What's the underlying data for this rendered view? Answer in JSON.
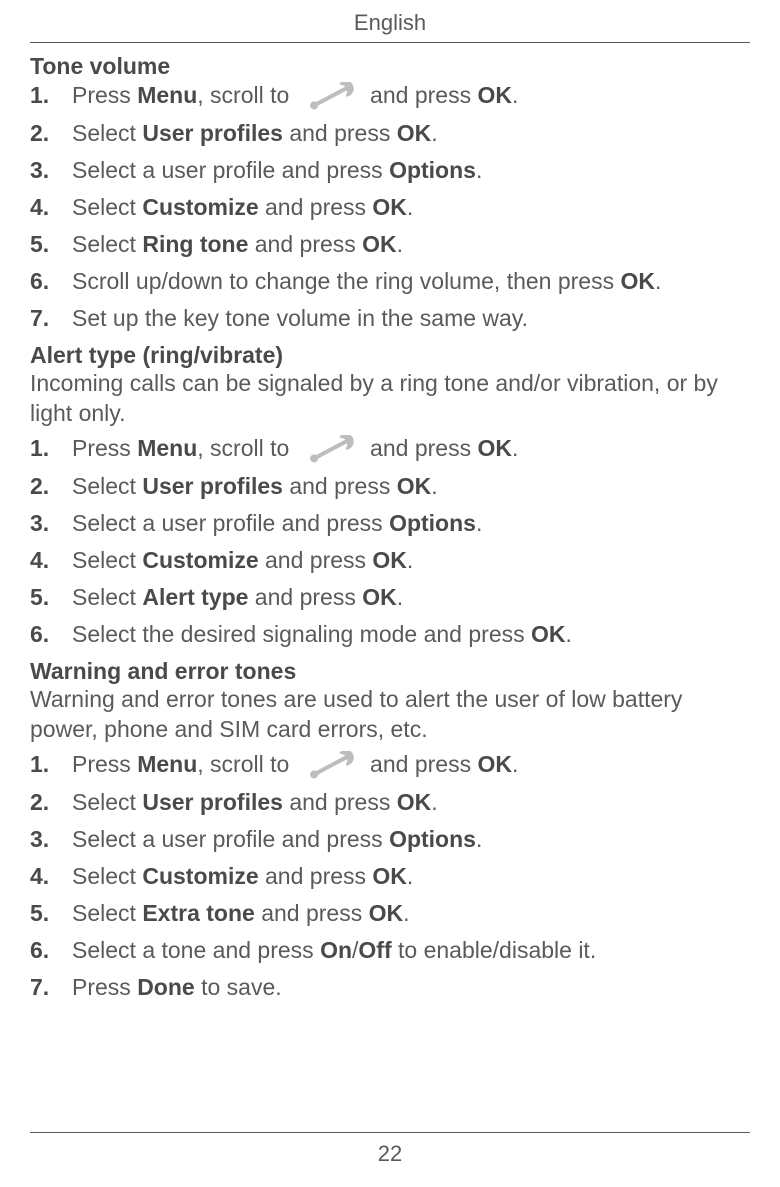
{
  "header": "English",
  "page_number": "22",
  "sections": [
    {
      "title": "Tone volume",
      "intro": "",
      "steps": [
        [
          {
            "t": "Press "
          },
          {
            "t": "Menu",
            "b": true
          },
          {
            "t": ", scroll to "
          },
          {
            "icon": true
          },
          {
            "t": " and press "
          },
          {
            "t": "OK",
            "b": true
          },
          {
            "t": "."
          }
        ],
        [
          {
            "t": "Select "
          },
          {
            "t": "User profiles",
            "b": true
          },
          {
            "t": " and press "
          },
          {
            "t": "OK",
            "b": true
          },
          {
            "t": "."
          }
        ],
        [
          {
            "t": "Select a user profile and press "
          },
          {
            "t": "Options",
            "b": true
          },
          {
            "t": "."
          }
        ],
        [
          {
            "t": "Select "
          },
          {
            "t": "Customize",
            "b": true
          },
          {
            "t": " and press "
          },
          {
            "t": "OK",
            "b": true
          },
          {
            "t": "."
          }
        ],
        [
          {
            "t": "Select "
          },
          {
            "t": "Ring tone",
            "b": true
          },
          {
            "t": " and press "
          },
          {
            "t": "OK",
            "b": true
          },
          {
            "t": "."
          }
        ],
        [
          {
            "t": "Scroll up/down to change the ring volume, then press "
          },
          {
            "t": "OK",
            "b": true
          },
          {
            "t": "."
          }
        ],
        [
          {
            "t": "Set up the key tone volume in the same way."
          }
        ]
      ]
    },
    {
      "title": "Alert type (ring/vibrate)",
      "intro": "Incoming calls can be signaled by a ring tone and/or vibration, or by light only.",
      "steps": [
        [
          {
            "t": "Press "
          },
          {
            "t": "Menu",
            "b": true
          },
          {
            "t": ", scroll to "
          },
          {
            "icon": true
          },
          {
            "t": " and press "
          },
          {
            "t": "OK",
            "b": true
          },
          {
            "t": "."
          }
        ],
        [
          {
            "t": "Select "
          },
          {
            "t": "User profiles",
            "b": true
          },
          {
            "t": " and press "
          },
          {
            "t": "OK",
            "b": true
          },
          {
            "t": "."
          }
        ],
        [
          {
            "t": "Select a user profile and press "
          },
          {
            "t": "Options",
            "b": true
          },
          {
            "t": "."
          }
        ],
        [
          {
            "t": "Select "
          },
          {
            "t": "Customize",
            "b": true
          },
          {
            "t": " and press "
          },
          {
            "t": "OK",
            "b": true
          },
          {
            "t": "."
          }
        ],
        [
          {
            "t": "Select "
          },
          {
            "t": "Alert type",
            "b": true
          },
          {
            "t": " and press "
          },
          {
            "t": "OK",
            "b": true
          },
          {
            "t": "."
          }
        ],
        [
          {
            "t": "Select the desired signaling mode and press "
          },
          {
            "t": "OK",
            "b": true
          },
          {
            "t": "."
          }
        ]
      ]
    },
    {
      "title": "Warning and error tones",
      "intro": "Warning and error tones are used to alert the user of low battery power, phone and SIM card errors, etc.",
      "steps": [
        [
          {
            "t": "Press "
          },
          {
            "t": "Menu",
            "b": true
          },
          {
            "t": ", scroll to "
          },
          {
            "icon": true
          },
          {
            "t": " and press "
          },
          {
            "t": "OK",
            "b": true
          },
          {
            "t": "."
          }
        ],
        [
          {
            "t": "Select "
          },
          {
            "t": "User profiles",
            "b": true
          },
          {
            "t": " and press "
          },
          {
            "t": "OK",
            "b": true
          },
          {
            "t": "."
          }
        ],
        [
          {
            "t": "Select a user profile and press "
          },
          {
            "t": "Options",
            "b": true
          },
          {
            "t": "."
          }
        ],
        [
          {
            "t": "Select "
          },
          {
            "t": "Customize",
            "b": true
          },
          {
            "t": " and press "
          },
          {
            "t": "OK",
            "b": true
          },
          {
            "t": "."
          }
        ],
        [
          {
            "t": "Select "
          },
          {
            "t": "Extra tone",
            "b": true
          },
          {
            "t": " and press "
          },
          {
            "t": "OK",
            "b": true
          },
          {
            "t": "."
          }
        ],
        [
          {
            "t": "Select a tone and press "
          },
          {
            "t": "On",
            "b": true
          },
          {
            "t": "/"
          },
          {
            "t": "Off",
            "b": true
          },
          {
            "t": " to enable/disable it."
          }
        ],
        [
          {
            "t": "Press "
          },
          {
            "t": "Done",
            "b": true
          },
          {
            "t": " to save."
          }
        ]
      ]
    }
  ]
}
